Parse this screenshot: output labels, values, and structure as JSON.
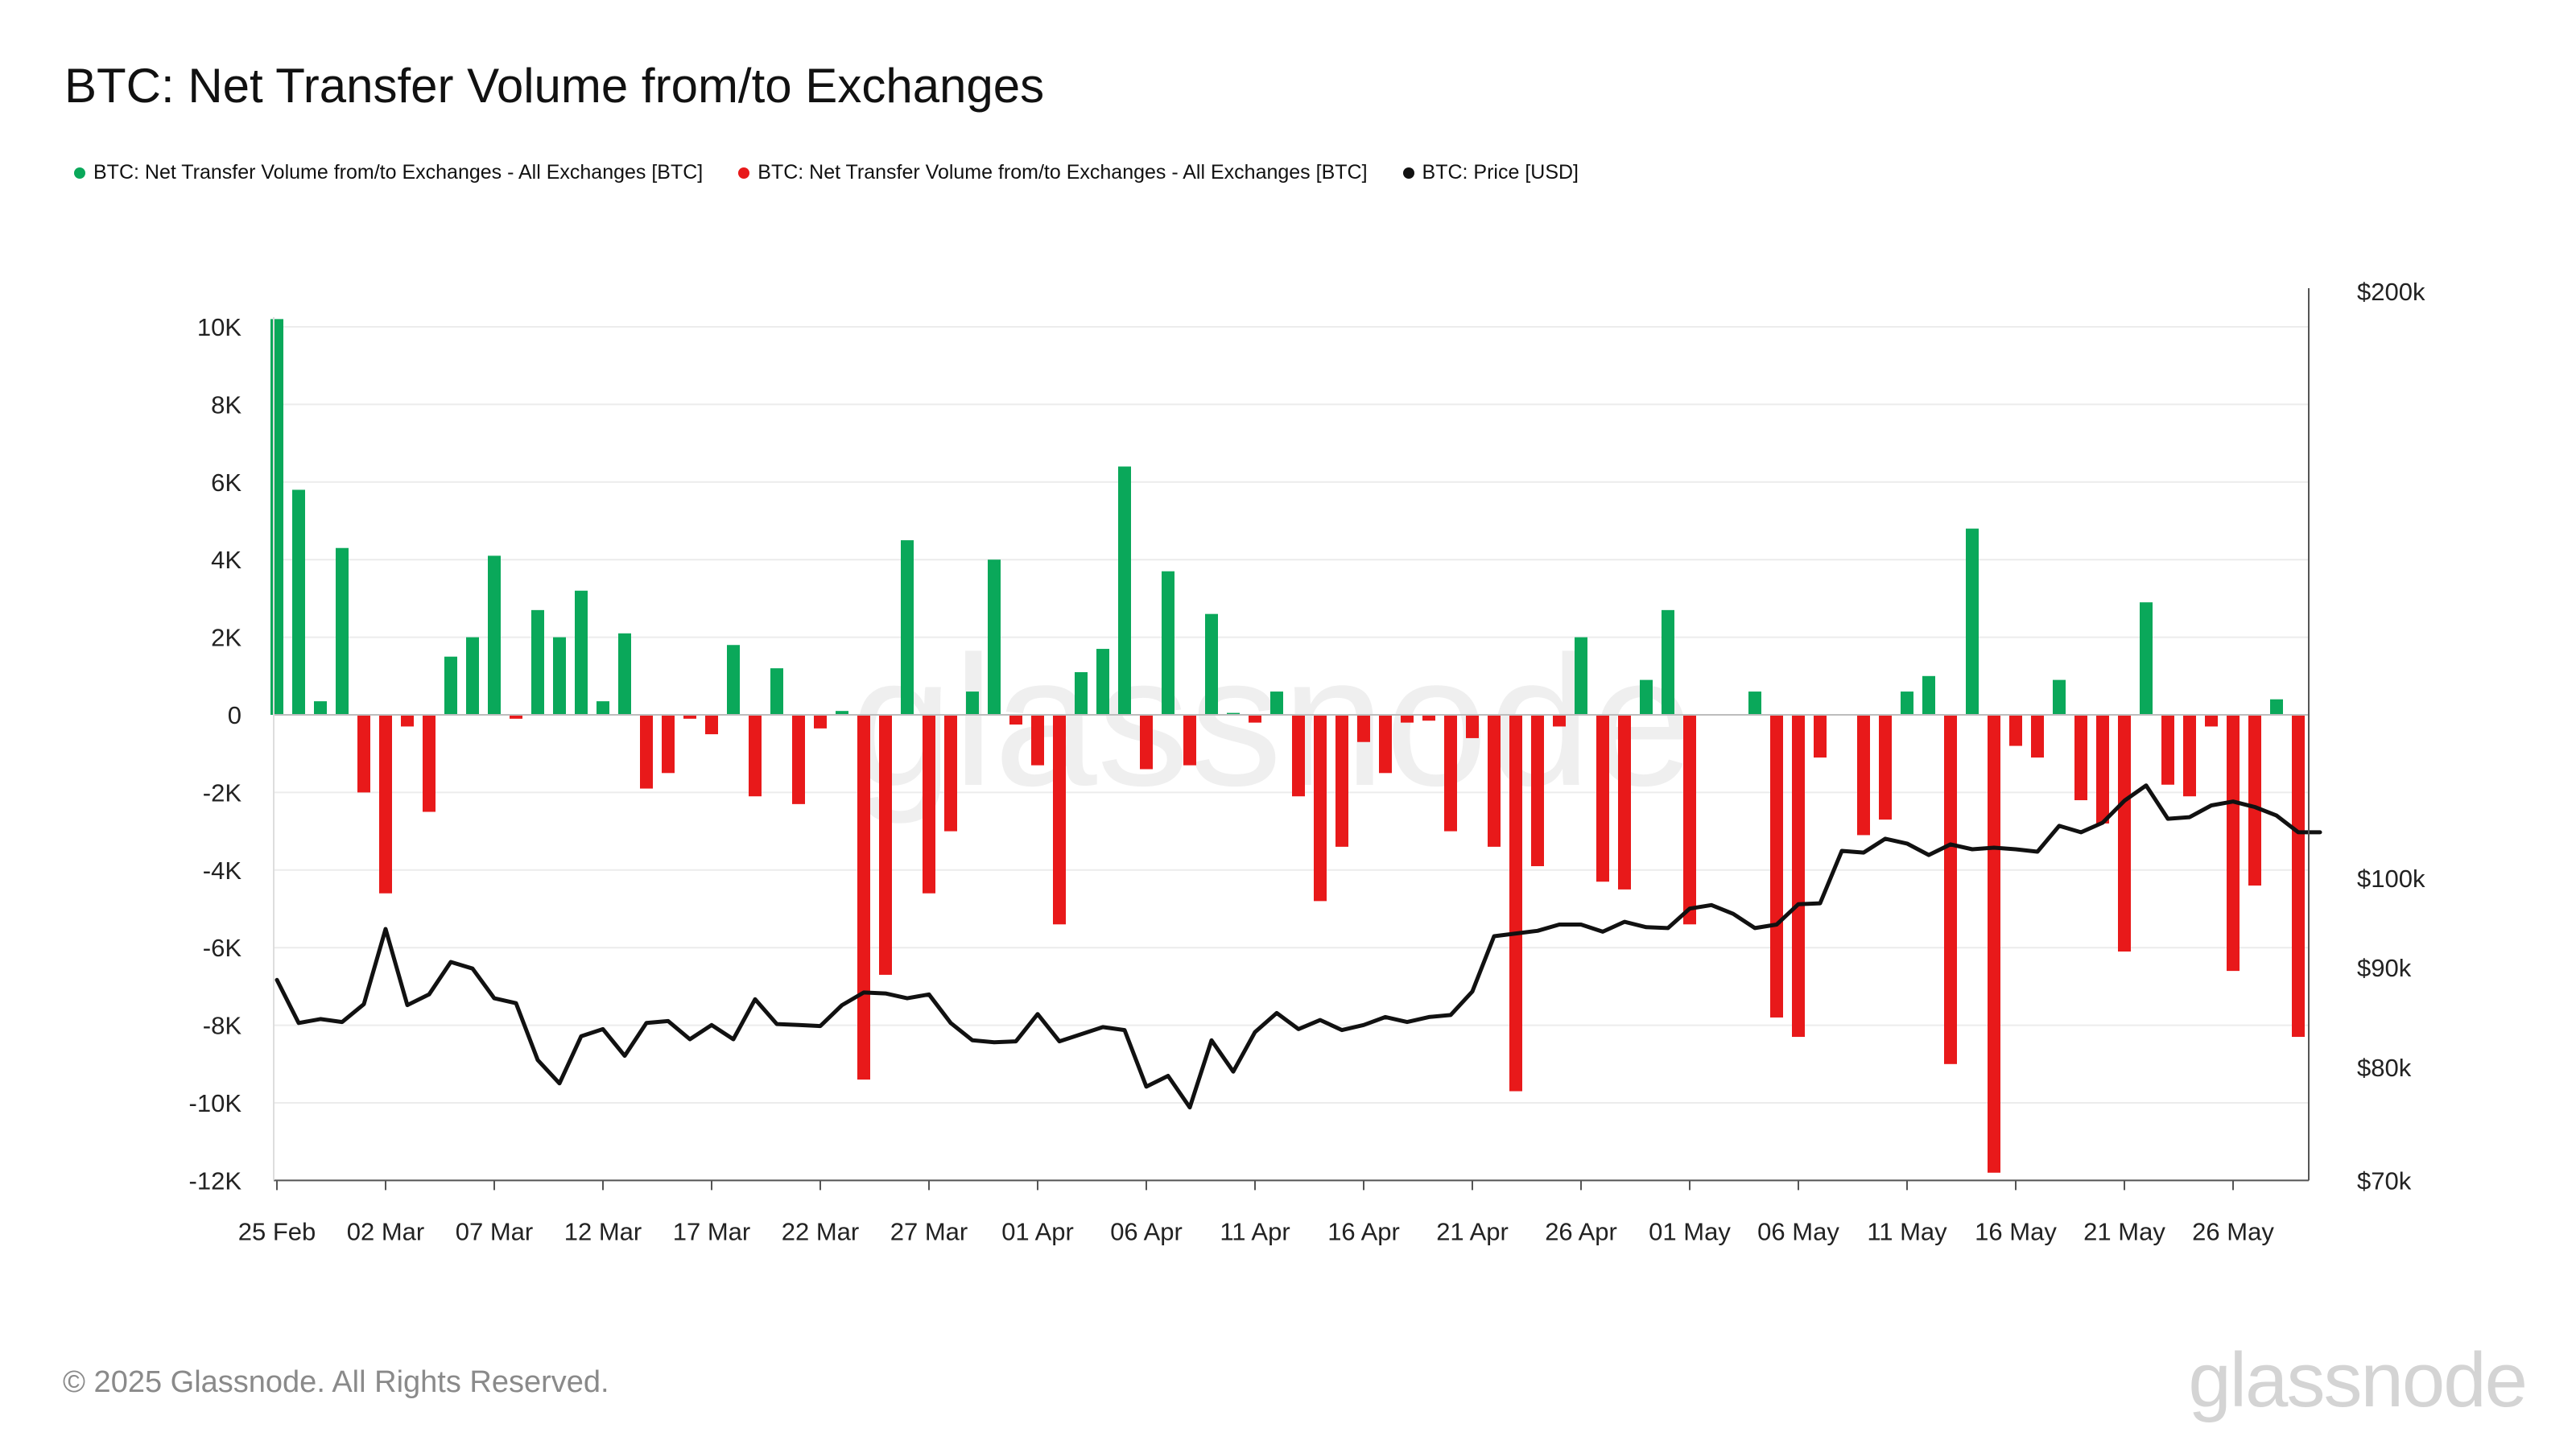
{
  "title": "BTC: Net Transfer Volume from/to Exchanges",
  "legend": [
    {
      "label": "BTC: Net Transfer Volume from/to Exchanges - All Exchanges [BTC]",
      "color": "#0aa85a"
    },
    {
      "label": "BTC: Net Transfer Volume from/to Exchanges - All Exchanges [BTC]",
      "color": "#e8191a"
    },
    {
      "label": "BTC: Price [USD]",
      "color": "#111111"
    }
  ],
  "footer": {
    "copyright": "© 2025 Glassnode. All Rights Reserved.",
    "logo": "glassnode"
  },
  "watermark": "glassnode",
  "chart_data": {
    "type": "bar",
    "title": "BTC: Net Transfer Volume from/to Exchanges",
    "x_ticks": [
      "25 Feb",
      "02 Mar",
      "07 Mar",
      "12 Mar",
      "17 Mar",
      "22 Mar",
      "27 Mar",
      "01 Apr",
      "06 Apr",
      "11 Apr",
      "16 Apr",
      "21 Apr",
      "26 Apr",
      "01 May",
      "06 May",
      "11 May",
      "16 May",
      "21 May",
      "26 May"
    ],
    "y_left_ticks": [
      "10K",
      "8K",
      "6K",
      "4K",
      "2K",
      "0",
      "-2K",
      "-4K",
      "-6K",
      "-8K",
      "-10K",
      "-12K"
    ],
    "y_left_range": [
      -12000,
      10000
    ],
    "y_right_ticks": [
      "$200k",
      "$100k",
      "$90k",
      "$80k",
      "$70k"
    ],
    "y_right_scale": "log",
    "y_right_range": [
      70000,
      200000
    ],
    "grid": true,
    "legend_position": "top-left",
    "dates": [
      "2025-02-25",
      "2025-02-26",
      "2025-02-27",
      "2025-02-28",
      "2025-03-01",
      "2025-03-02",
      "2025-03-03",
      "2025-03-04",
      "2025-03-05",
      "2025-03-06",
      "2025-03-07",
      "2025-03-08",
      "2025-03-09",
      "2025-03-10",
      "2025-03-11",
      "2025-03-12",
      "2025-03-13",
      "2025-03-14",
      "2025-03-15",
      "2025-03-16",
      "2025-03-17",
      "2025-03-18",
      "2025-03-19",
      "2025-03-20",
      "2025-03-21",
      "2025-03-22",
      "2025-03-23",
      "2025-03-24",
      "2025-03-25",
      "2025-03-26",
      "2025-03-27",
      "2025-03-28",
      "2025-03-29",
      "2025-03-30",
      "2025-03-31",
      "2025-04-01",
      "2025-04-02",
      "2025-04-03",
      "2025-04-04",
      "2025-04-05",
      "2025-04-06",
      "2025-04-07",
      "2025-04-08",
      "2025-04-09",
      "2025-04-10",
      "2025-04-11",
      "2025-04-12",
      "2025-04-13",
      "2025-04-14",
      "2025-04-15",
      "2025-04-16",
      "2025-04-17",
      "2025-04-18",
      "2025-04-19",
      "2025-04-20",
      "2025-04-21",
      "2025-04-22",
      "2025-04-23",
      "2025-04-24",
      "2025-04-25",
      "2025-04-26",
      "2025-04-27",
      "2025-04-28",
      "2025-04-29",
      "2025-04-30",
      "2025-05-01",
      "2025-05-02",
      "2025-05-03",
      "2025-05-04",
      "2025-05-05",
      "2025-05-06",
      "2025-05-07",
      "2025-05-08",
      "2025-05-09",
      "2025-05-10",
      "2025-05-11",
      "2025-05-12",
      "2025-05-13",
      "2025-05-14",
      "2025-05-15",
      "2025-05-16",
      "2025-05-17",
      "2025-05-18",
      "2025-05-19",
      "2025-05-20",
      "2025-05-21",
      "2025-05-22",
      "2025-05-23",
      "2025-05-24",
      "2025-05-25",
      "2025-05-26",
      "2025-05-27",
      "2025-05-28",
      "2025-05-29",
      "2025-05-30"
    ],
    "series": [
      {
        "name": "BTC: Net Transfer Volume from/to Exchanges - All Exchanges [BTC]",
        "axis": "left",
        "positive_color": "#0aa85a",
        "negative_color": "#e8191a",
        "values": [
          10200,
          5800,
          350,
          4300,
          -2000,
          -4600,
          -300,
          -2500,
          1500,
          2000,
          4100,
          -100,
          2700,
          2000,
          3200,
          350,
          2100,
          -1900,
          -1500,
          -100,
          -500,
          1800,
          -2100,
          1200,
          -2300,
          -350,
          100,
          -9400,
          -6700,
          4500,
          -4600,
          -3000,
          600,
          4000,
          -250,
          -1300,
          -5400,
          1100,
          1700,
          6400,
          -1400,
          3700,
          -1300,
          2600,
          50,
          -200,
          600,
          -2100,
          -4800,
          -3400,
          -700,
          -1500,
          -200,
          -150,
          -3000,
          -600,
          -3400,
          -9700,
          -3900,
          -300,
          2000,
          -4300,
          -4500,
          900,
          2700,
          -5400,
          0,
          0,
          600,
          -7800,
          -8300,
          -1100,
          0,
          -3100,
          -2700,
          600,
          1000,
          -9000,
          4800,
          -11800,
          -800,
          -1100,
          900,
          -2200,
          -2800,
          -6100,
          2900,
          -1800,
          -2100,
          -300,
          -6600,
          -4400,
          400,
          -8300,
          0
        ]
      },
      {
        "name": "BTC: Price [USD]",
        "axis": "right",
        "color": "#111111",
        "values": [
          88700,
          84300,
          84700,
          84400,
          86200,
          94200,
          86100,
          87200,
          90600,
          89900,
          86800,
          86300,
          80700,
          78500,
          83000,
          83700,
          81100,
          84300,
          84500,
          82700,
          84100,
          82700,
          86700,
          84200,
          84100,
          84000,
          86100,
          87400,
          87300,
          86800,
          87200,
          84300,
          82600,
          82400,
          82500,
          85200,
          82500,
          83200,
          83900,
          83600,
          78200,
          79200,
          76300,
          82600,
          79600,
          83400,
          85300,
          83700,
          84600,
          83600,
          84100,
          84900,
          84400,
          84900,
          85100,
          87500,
          93400,
          93700,
          94000,
          94700,
          94700,
          93900,
          95000,
          94400,
          94300,
          96500,
          96900,
          95900,
          94300,
          94700,
          97000,
          97100,
          103300,
          103100,
          104800,
          104200,
          102800,
          104100,
          103500,
          103700,
          103500,
          103200,
          106400,
          105600,
          106800,
          109600,
          111600,
          107300,
          107500,
          109000,
          109500,
          108800,
          107700,
          105600,
          105600
        ]
      }
    ]
  }
}
